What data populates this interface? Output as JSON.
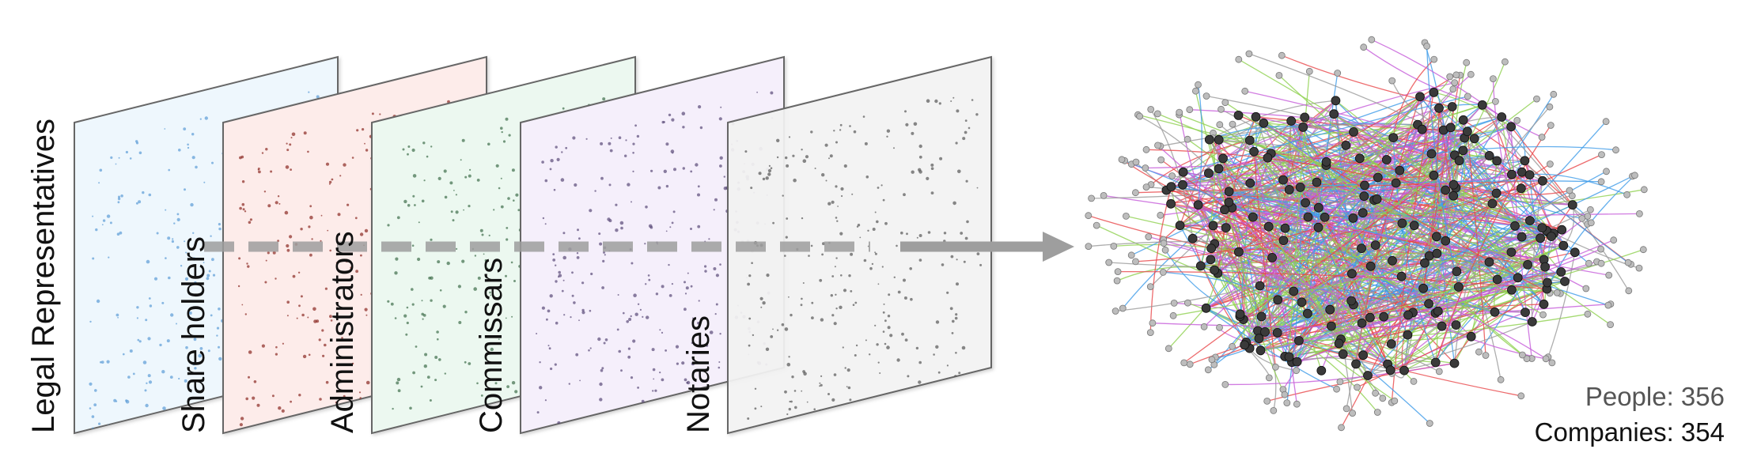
{
  "layers": [
    {
      "label": "Legal Representatives",
      "tint": "#eef7fd",
      "node_color": "#5b9bd5"
    },
    {
      "label": "Share holders",
      "tint": "#fdecea",
      "node_color": "#8a2a22"
    },
    {
      "label": "Administrators",
      "tint": "#ecf8f0",
      "node_color": "#3f6d4a"
    },
    {
      "label": "Commissars",
      "tint": "#f5effb",
      "node_color": "#5a4a78"
    },
    {
      "label": "Notaries",
      "tint": "#f3f3f3",
      "node_color": "#555555"
    }
  ],
  "network": {
    "company_node_color": "#3a3a3a",
    "person_node_color": "#bdbdbd",
    "edge_colors": [
      "#e8474a",
      "#3d9be9",
      "#8fd14f",
      "#c55bd9",
      "#9a9a9a"
    ]
  },
  "stats": {
    "people": "People: 356",
    "companies": "Companies: 354",
    "people_color": "#555555",
    "companies_color": "#111111"
  },
  "arrow_color": "#9e9e9e"
}
